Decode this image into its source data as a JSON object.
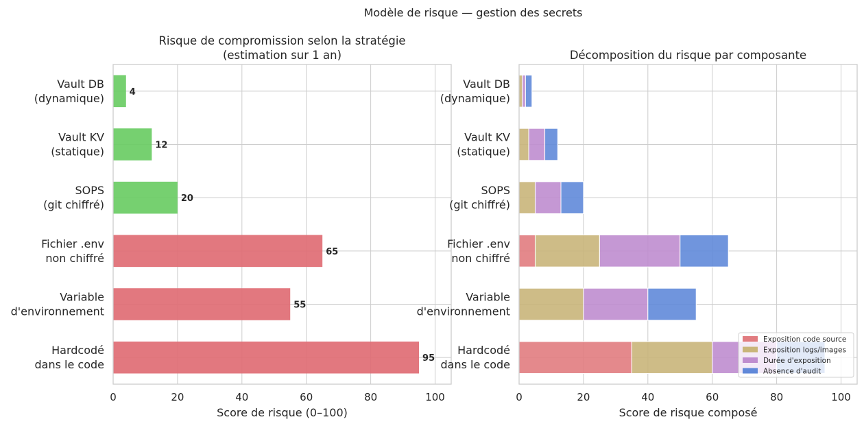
{
  "suptitle": "Modèle de risque — gestion des secrets",
  "chart_data": [
    {
      "type": "bar",
      "orientation": "horizontal",
      "title": "Risque de compromission selon la stratégie\n(estimation sur 1 an)",
      "xlabel": "Score de risque (0–100)",
      "ylabel": "",
      "xlim": [
        0,
        105
      ],
      "xticks": [
        "0",
        "20",
        "40",
        "60",
        "80",
        "100"
      ],
      "grid": true,
      "categories": [
        "Vault DB\n(dynamique)",
        "Vault KV\n(statique)",
        "SOPS\n(git chiffré)",
        "Fichier .env\nnon chiffré",
        "Variable\nd'environnement",
        "Hardcodé\ndans le code"
      ],
      "values": [
        4,
        12,
        20,
        65,
        55,
        95
      ],
      "data_labels": [
        "4",
        "12",
        "20",
        "65",
        "55",
        "95"
      ],
      "colors": [
        "#6acc64",
        "#6acc64",
        "#6acc64",
        "#e06c74",
        "#e06c74",
        "#e06c74"
      ]
    },
    {
      "type": "bar",
      "orientation": "horizontal",
      "stacked": true,
      "title": "Décomposition du risque par composante",
      "xlabel": "Score de risque composé",
      "ylabel": "",
      "xlim": [
        0,
        105
      ],
      "xticks": [
        "0",
        "20",
        "40",
        "60",
        "80",
        "100"
      ],
      "grid": true,
      "legend_position": "lower-right",
      "categories": [
        "Vault DB\n(dynamique)",
        "Vault KV\n(statique)",
        "SOPS\n(git chiffré)",
        "Fichier .env\nnon chiffré",
        "Variable\nd'environnement",
        "Hardcodé\ndans le code"
      ],
      "series": [
        {
          "name": "Exposition code source",
          "color": "#e17c80",
          "values": [
            0,
            0,
            0,
            5,
            0,
            35
          ]
        },
        {
          "name": "Exposition logs/images",
          "color": "#c9b57a",
          "values": [
            1,
            3,
            5,
            20,
            20,
            25
          ]
        },
        {
          "name": "Durée d'exposition",
          "color": "#bf8dcf",
          "values": [
            1,
            5,
            8,
            25,
            20,
            20
          ]
        },
        {
          "name": "Absence d'audit",
          "color": "#6189d9",
          "values": [
            2,
            4,
            7,
            15,
            15,
            15
          ]
        }
      ]
    }
  ]
}
